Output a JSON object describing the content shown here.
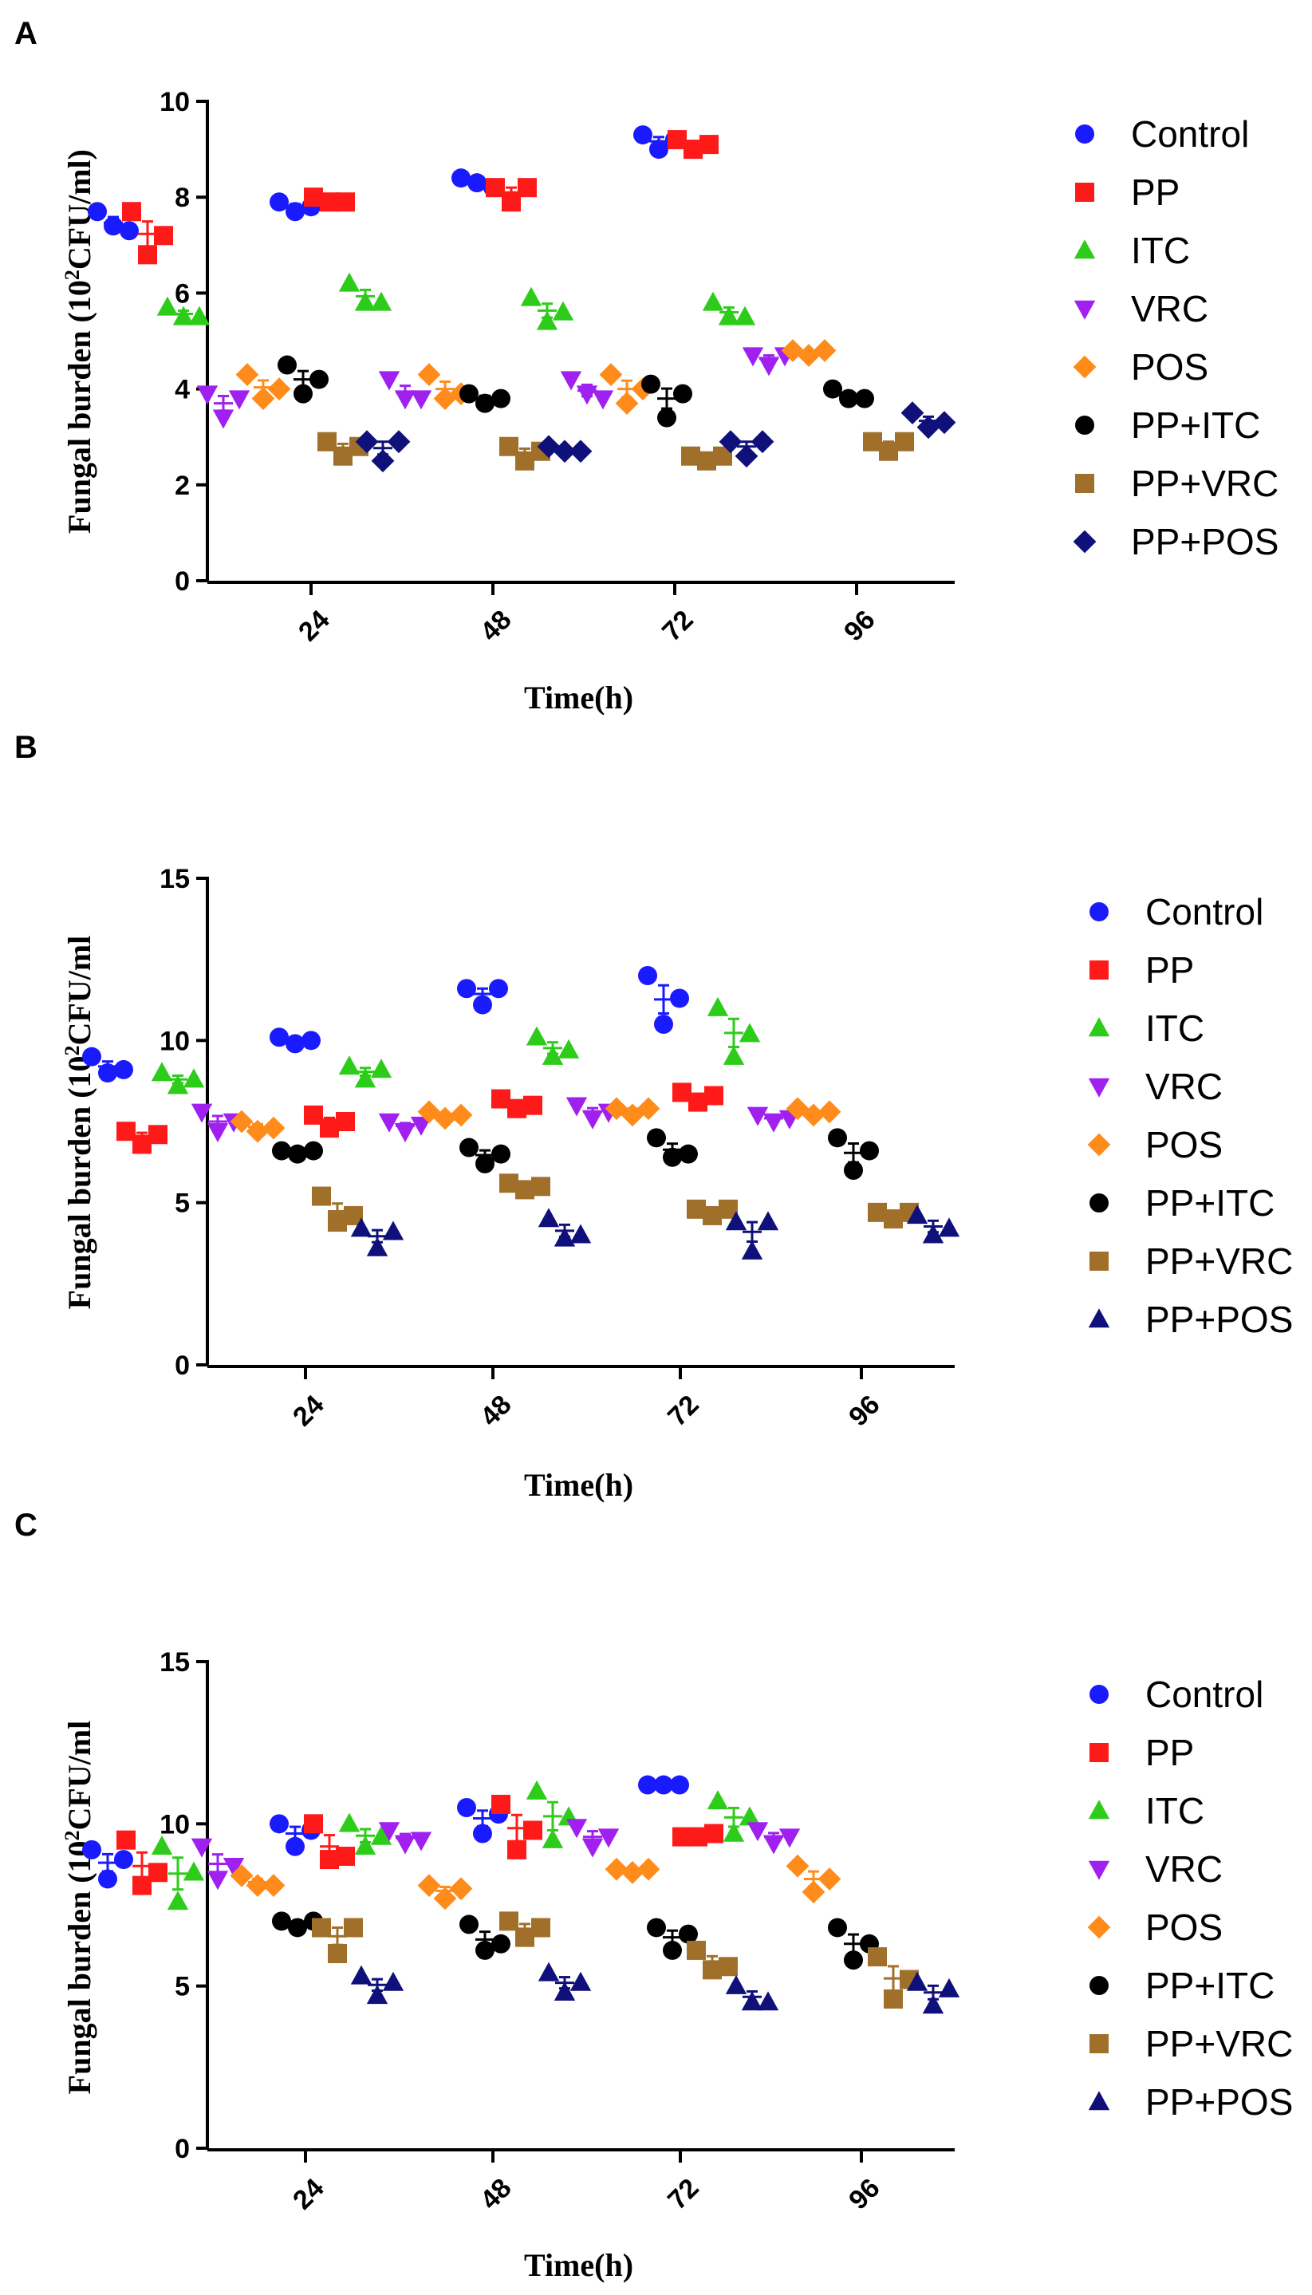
{
  "figure": {
    "series_styles": [
      {
        "name": "Control",
        "color": "#1a1aff",
        "marker": "circle"
      },
      {
        "name": "PP",
        "color": "#ff1a1a",
        "marker": "square"
      },
      {
        "name": "ITC",
        "color": "#2ecc1a",
        "marker": "triangle-up"
      },
      {
        "name": "VRC",
        "color": "#a020f0",
        "marker": "triangle-down"
      },
      {
        "name": "POS",
        "color": "#ff8c1a",
        "marker": "diamond"
      },
      {
        "name": "PP+ITC",
        "color": "#000000",
        "marker": "circle"
      },
      {
        "name": "PP+VRC",
        "color": "#a0702a",
        "marker": "square"
      },
      {
        "name": "PP+POS",
        "color": "#10107a",
        "marker": "diamond"
      }
    ]
  },
  "chart_data": [
    {
      "panel_label": "A",
      "type": "scatter",
      "xlabel": "Time(h)",
      "ylabel": "Fungal burden (10",
      "ylabel_sup": "2",
      "ylabel_suffix": "CFU/ml)",
      "ylim": [
        0,
        10
      ],
      "yticks": [
        "0",
        "2",
        "4",
        "6",
        "8",
        "10"
      ],
      "categories": [
        "24",
        "48",
        "72",
        "96"
      ],
      "legend": [
        "Control",
        "PP",
        "ITC",
        "VRC",
        "POS",
        "PP+ITC",
        "PP+VRC",
        "PP+POS"
      ],
      "last_series_marker": "diamond",
      "series": [
        {
          "name": "Control",
          "values": [
            [
              7.7,
              7.4,
              7.3
            ],
            [
              7.9,
              7.7,
              7.8
            ],
            [
              8.4,
              8.3,
              8.2
            ],
            [
              9.3,
              9.0,
              9.2
            ]
          ]
        },
        {
          "name": "PP",
          "values": [
            [
              7.7,
              6.8,
              7.2
            ],
            [
              8.0,
              7.9,
              7.9
            ],
            [
              8.2,
              7.9,
              8.2
            ],
            [
              9.2,
              9.0,
              9.1
            ]
          ]
        },
        {
          "name": "ITC",
          "values": [
            [
              5.7,
              5.5,
              5.5
            ],
            [
              6.2,
              5.8,
              5.8
            ],
            [
              5.9,
              5.4,
              5.6
            ],
            [
              5.8,
              5.5,
              5.5
            ]
          ]
        },
        {
          "name": "VRC",
          "values": [
            [
              3.9,
              3.4,
              3.8
            ],
            [
              4.2,
              3.8,
              3.8
            ],
            [
              4.2,
              3.9,
              3.8
            ],
            [
              4.7,
              4.5,
              4.7
            ]
          ]
        },
        {
          "name": "POS",
          "values": [
            [
              4.3,
              3.8,
              4.0
            ],
            [
              4.3,
              3.8,
              3.9
            ],
            [
              4.3,
              3.7,
              4.0
            ],
            [
              4.8,
              4.7,
              4.8
            ]
          ]
        },
        {
          "name": "PP+ITC",
          "values": [
            [
              4.5,
              3.9,
              4.2
            ],
            [
              3.9,
              3.7,
              3.8
            ],
            [
              4.1,
              3.4,
              3.9
            ],
            [
              4.0,
              3.8,
              3.8
            ]
          ]
        },
        {
          "name": "PP+VRC",
          "values": [
            [
              2.9,
              2.6,
              2.8
            ],
            [
              2.8,
              2.5,
              2.7
            ],
            [
              2.6,
              2.5,
              2.6
            ],
            [
              2.9,
              2.7,
              2.9
            ]
          ]
        },
        {
          "name": "PP+POS",
          "values": [
            [
              2.9,
              2.5,
              2.9
            ],
            [
              2.8,
              2.7,
              2.7
            ],
            [
              2.9,
              2.6,
              2.9
            ],
            [
              3.5,
              3.2,
              3.3
            ]
          ]
        }
      ]
    },
    {
      "panel_label": "B",
      "type": "scatter",
      "xlabel": "Time(h)",
      "ylabel": "Fungal burden (10",
      "ylabel_sup": "2",
      "ylabel_suffix": "CFU/ml",
      "ylim": [
        0,
        15
      ],
      "yticks": [
        "0",
        "5",
        "10",
        "15"
      ],
      "categories": [
        "24",
        "48",
        "72",
        "96"
      ],
      "legend": [
        "Control",
        "PP",
        "ITC",
        "VRC",
        "POS",
        "PP+ITC",
        "PP+VRC",
        "PP+POS"
      ],
      "last_series_marker": "triangle-up",
      "series": [
        {
          "name": "Control",
          "values": [
            [
              9.5,
              9.0,
              9.1
            ],
            [
              10.1,
              9.9,
              10.0
            ],
            [
              11.6,
              11.1,
              11.6
            ],
            [
              12.0,
              10.5,
              11.3
            ]
          ]
        },
        {
          "name": "PP",
          "values": [
            [
              7.2,
              6.8,
              7.1
            ],
            [
              7.7,
              7.3,
              7.5
            ],
            [
              8.2,
              7.9,
              8.0
            ],
            [
              8.4,
              8.1,
              8.3
            ]
          ]
        },
        {
          "name": "ITC",
          "values": [
            [
              9.0,
              8.6,
              8.8
            ],
            [
              9.2,
              8.8,
              9.1
            ],
            [
              10.1,
              9.5,
              9.7
            ],
            [
              11.0,
              9.5,
              10.2
            ]
          ]
        },
        {
          "name": "VRC",
          "values": [
            [
              7.8,
              7.2,
              7.5
            ],
            [
              7.5,
              7.2,
              7.4
            ],
            [
              8.0,
              7.6,
              7.8
            ],
            [
              7.7,
              7.5,
              7.6
            ]
          ]
        },
        {
          "name": "POS",
          "values": [
            [
              7.5,
              7.2,
              7.3
            ],
            [
              7.8,
              7.6,
              7.7
            ],
            [
              7.9,
              7.7,
              7.9
            ],
            [
              7.9,
              7.7,
              7.8
            ]
          ]
        },
        {
          "name": "PP+ITC",
          "values": [
            [
              6.6,
              6.5,
              6.6
            ],
            [
              6.7,
              6.2,
              6.5
            ],
            [
              7.0,
              6.4,
              6.5
            ],
            [
              7.0,
              6.0,
              6.6
            ]
          ]
        },
        {
          "name": "PP+VRC",
          "values": [
            [
              5.2,
              4.4,
              4.6
            ],
            [
              5.6,
              5.4,
              5.5
            ],
            [
              4.8,
              4.6,
              4.8
            ],
            [
              4.7,
              4.5,
              4.7
            ]
          ]
        },
        {
          "name": "PP+POS",
          "values": [
            [
              4.2,
              3.6,
              4.1
            ],
            [
              4.5,
              3.9,
              4.0
            ],
            [
              4.4,
              3.5,
              4.4
            ],
            [
              4.6,
              4.0,
              4.2
            ]
          ]
        }
      ]
    },
    {
      "panel_label": "C",
      "type": "scatter",
      "xlabel": "Time(h)",
      "ylabel": "Fungal burden (10",
      "ylabel_sup": "2",
      "ylabel_suffix": "CFU/ml",
      "ylim": [
        0,
        15
      ],
      "yticks": [
        "0",
        "5",
        "10",
        "15"
      ],
      "categories": [
        "24",
        "48",
        "72",
        "96"
      ],
      "legend": [
        "Control",
        "PP",
        "ITC",
        "VRC",
        "POS",
        "PP+ITC",
        "PP+VRC",
        "PP+POS"
      ],
      "last_series_marker": "triangle-up",
      "series": [
        {
          "name": "Control",
          "values": [
            [
              9.2,
              8.3,
              8.9
            ],
            [
              10.0,
              9.3,
              9.8
            ],
            [
              10.5,
              9.7,
              10.3
            ],
            [
              11.2,
              11.2,
              11.2
            ]
          ]
        },
        {
          "name": "PP",
          "values": [
            [
              9.5,
              8.1,
              8.5
            ],
            [
              10.0,
              8.9,
              9.0
            ],
            [
              10.6,
              9.2,
              9.8
            ],
            [
              9.6,
              9.6,
              9.7
            ]
          ]
        },
        {
          "name": "ITC",
          "values": [
            [
              9.3,
              7.6,
              8.5
            ],
            [
              10.0,
              9.3,
              9.6
            ],
            [
              11.0,
              9.5,
              10.2
            ],
            [
              10.7,
              9.7,
              10.2
            ]
          ]
        },
        {
          "name": "VRC",
          "values": [
            [
              9.3,
              8.3,
              8.7
            ],
            [
              9.8,
              9.4,
              9.5
            ],
            [
              9.9,
              9.3,
              9.6
            ],
            [
              9.8,
              9.4,
              9.6
            ]
          ]
        },
        {
          "name": "POS",
          "values": [
            [
              8.4,
              8.1,
              8.1
            ],
            [
              8.1,
              7.7,
              8.0
            ],
            [
              8.6,
              8.5,
              8.6
            ],
            [
              8.7,
              7.9,
              8.3
            ]
          ]
        },
        {
          "name": "PP+ITC",
          "values": [
            [
              7.0,
              6.8,
              7.0
            ],
            [
              6.9,
              6.1,
              6.3
            ],
            [
              6.8,
              6.1,
              6.6
            ],
            [
              6.8,
              5.8,
              6.3
            ]
          ]
        },
        {
          "name": "PP+VRC",
          "values": [
            [
              6.8,
              6.0,
              6.8
            ],
            [
              7.0,
              6.5,
              6.8
            ],
            [
              6.1,
              5.5,
              5.6
            ],
            [
              5.9,
              4.6,
              5.2
            ]
          ]
        },
        {
          "name": "PP+POS",
          "values": [
            [
              5.3,
              4.7,
              5.1
            ],
            [
              5.4,
              4.8,
              5.1
            ],
            [
              5.0,
              4.5,
              4.5
            ],
            [
              5.1,
              4.4,
              4.9
            ]
          ]
        }
      ]
    }
  ]
}
